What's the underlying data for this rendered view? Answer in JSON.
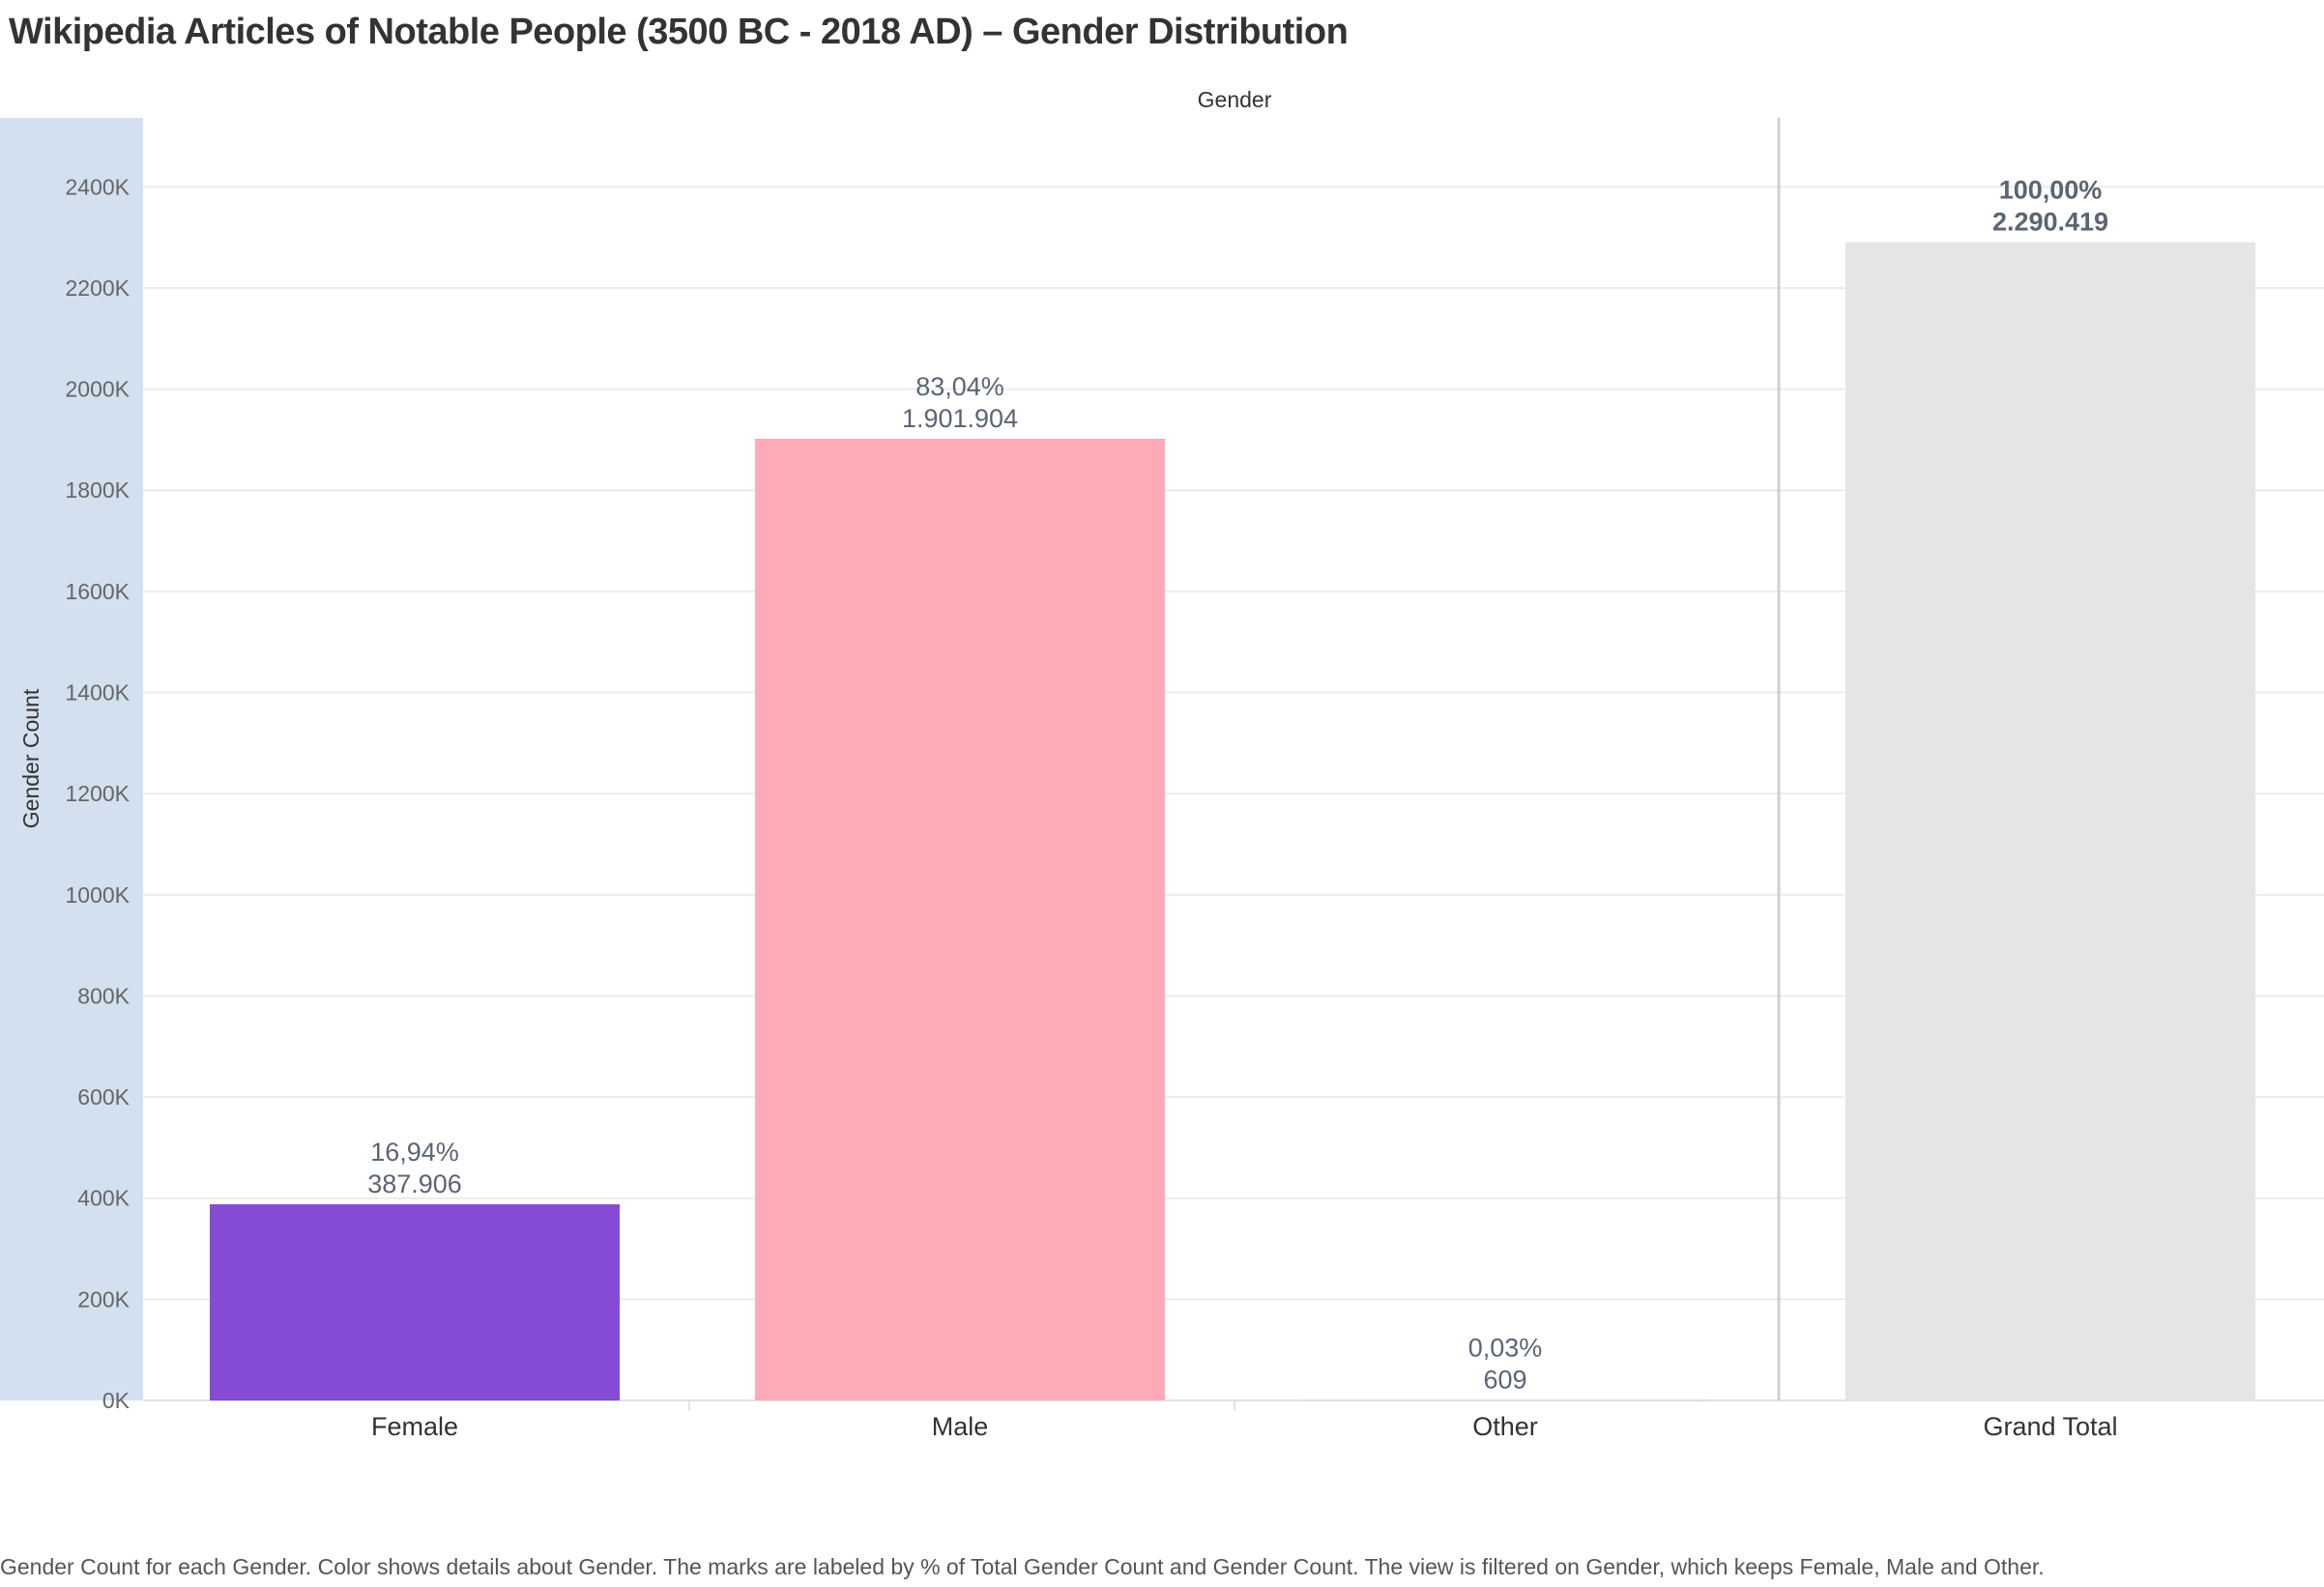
{
  "page": {
    "title": "Wikipedia Articles of Notable People (3500 BC - 2018 AD) – Gender Distribution",
    "caption": "Gender Count for each Gender.  Color shows details about Gender.  The marks are labeled by % of Total Gender Count and Gender Count. The view is filtered on Gender, which keeps Female, Male and Other."
  },
  "colors": {
    "axis_band": "#d3e0ef",
    "grid": "#ececec",
    "divider": "#d0d0d0",
    "tick_text": "#666666",
    "label_text": "#5b6573",
    "category_text": "#333333"
  },
  "chart_data": {
    "type": "bar",
    "title": "Wikipedia Articles of Notable People (3500 BC - 2018 AD) – Gender Distribution",
    "column_header": "Gender",
    "ylabel": "Gender Count",
    "ylim": [
      0,
      2540000
    ],
    "yticks": [
      0,
      200000,
      400000,
      600000,
      800000,
      1000000,
      1200000,
      1400000,
      1600000,
      1800000,
      2000000,
      2200000,
      2400000
    ],
    "ytick_labels": [
      "0K",
      "200K",
      "400K",
      "600K",
      "800K",
      "1000K",
      "1200K",
      "1400K",
      "1600K",
      "1800K",
      "2000K",
      "2200K",
      "2400K"
    ],
    "grid": true,
    "legend": "none",
    "categories": [
      "Female",
      "Male",
      "Other"
    ],
    "values": [
      387906,
      1901904,
      609
    ],
    "value_labels": [
      "387.906",
      "1.901.904",
      "609"
    ],
    "percent_labels": [
      "16,94%",
      "83,04%",
      "0,03%"
    ],
    "colors": [
      "#864bd5",
      "#feabb7",
      "#d9b3ff"
    ],
    "grand_total": {
      "label": "Grand Total",
      "value": 2290419,
      "value_label": "2.290.419",
      "percent_label": "100,00%",
      "color": "#e5e5e5"
    }
  }
}
